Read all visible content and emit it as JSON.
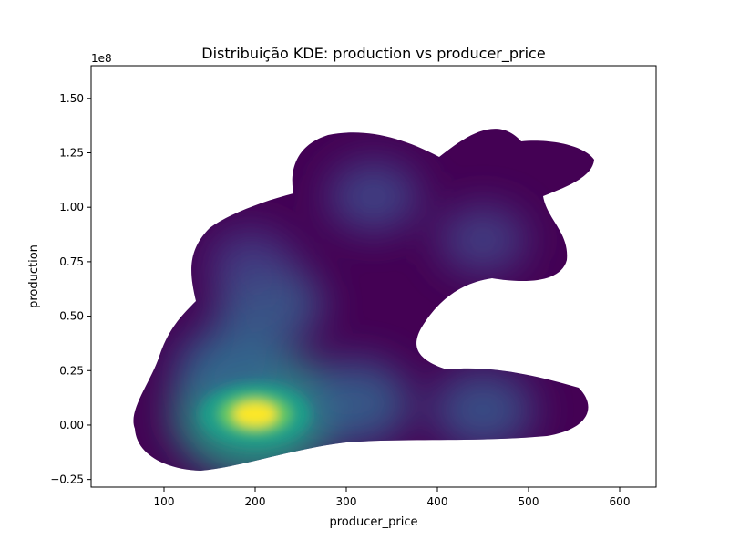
{
  "chart_data": {
    "type": "kde",
    "title": "Distribuição KDE: production vs producer_price",
    "xlabel": "producer_price",
    "ylabel": "production",
    "y_offset_label": "1e8",
    "xlim": [
      20,
      640
    ],
    "ylim": [
      -0.285,
      1.65
    ],
    "x_ticks": [
      100,
      200,
      300,
      400,
      500,
      600
    ],
    "x_tick_labels": [
      "100",
      "200",
      "300",
      "400",
      "500",
      "600"
    ],
    "y_ticks": [
      -0.25,
      0,
      0.25,
      0.5,
      0.75,
      1.0,
      1.25,
      1.5
    ],
    "y_tick_labels": [
      "−0.25",
      "0.00",
      "0.25",
      "0.50",
      "0.75",
      "1.00",
      "1.25",
      "1.50"
    ],
    "y_unit_scale": 100000000.0,
    "colormap": "viridis",
    "grid": false,
    "outline_color": "#440154",
    "density_peaks": [
      {
        "x": 200,
        "y": 0.05,
        "level": 1.0
      },
      {
        "x": 175,
        "y": 0.25,
        "level": 0.45
      },
      {
        "x": 215,
        "y": 0.55,
        "level": 0.38
      },
      {
        "x": 310,
        "y": 0.1,
        "level": 0.42
      },
      {
        "x": 450,
        "y": 0.07,
        "level": 0.32
      },
      {
        "x": 330,
        "y": 1.05,
        "level": 0.22
      },
      {
        "x": 450,
        "y": 0.85,
        "level": 0.18
      },
      {
        "x": 195,
        "y": 0.75,
        "level": 0.15
      }
    ]
  }
}
